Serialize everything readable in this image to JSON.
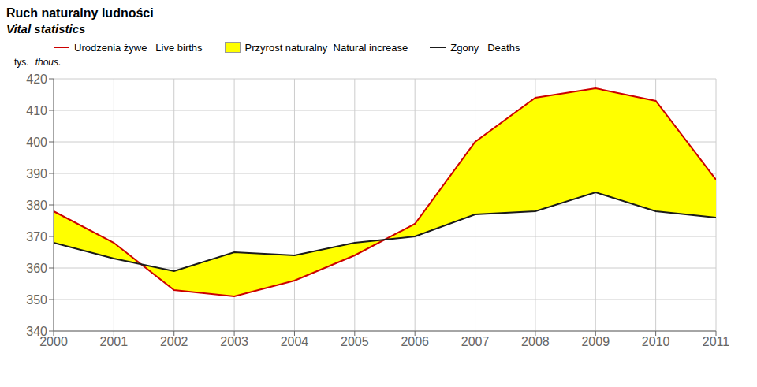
{
  "chart_data": {
    "type": "line",
    "title": "Ruch naturalny ludności",
    "subtitle": "Vital statistics",
    "ylabel": "tys.",
    "ylabel_en": "thous.",
    "x": [
      2000,
      2001,
      2002,
      2003,
      2004,
      2005,
      2006,
      2007,
      2008,
      2009,
      2010,
      2011
    ],
    "xlim": [
      2000,
      2011
    ],
    "xticks": [
      2000,
      2001,
      2002,
      2003,
      2004,
      2005,
      2006,
      2007,
      2008,
      2009,
      2010,
      2011
    ],
    "ylim": [
      340,
      420
    ],
    "yticks": [
      340,
      350,
      360,
      370,
      380,
      390,
      400,
      410,
      420
    ],
    "grid": true,
    "legend": "upper left",
    "series": [
      {
        "name": "Urodzenia żywe   Live births",
        "type": "line",
        "color": "#cc0000",
        "values": [
          378,
          368,
          353,
          351,
          356,
          364,
          374,
          400,
          414,
          417,
          413,
          388
        ]
      },
      {
        "name": "Przyrost naturalny  Natural increase",
        "type": "area",
        "color": "#ffff00",
        "values": [
          [
            368,
            378
          ],
          [
            363,
            368
          ],
          [
            359,
            353
          ],
          [
            365,
            351
          ],
          [
            364,
            356
          ],
          [
            368,
            364
          ],
          [
            370,
            374
          ],
          [
            377,
            400
          ],
          [
            378,
            414
          ],
          [
            384,
            417
          ],
          [
            378,
            413
          ],
          [
            376,
            388
          ]
        ]
      },
      {
        "name": "Zgony   Deaths",
        "type": "line",
        "color": "#1a1a1a",
        "values": [
          368,
          363,
          359,
          365,
          364,
          368,
          370,
          377,
          378,
          384,
          378,
          376
        ]
      }
    ]
  }
}
